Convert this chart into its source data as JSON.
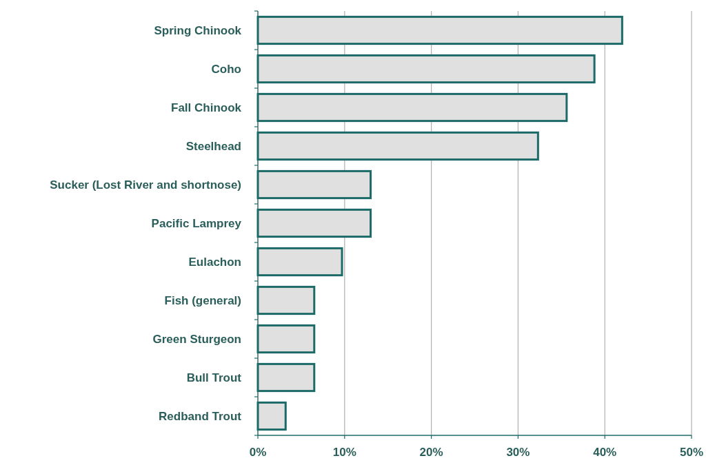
{
  "chart_data": {
    "type": "bar",
    "orientation": "horizontal",
    "categories": [
      "Spring Chinook",
      "Coho",
      "Fall Chinook",
      "Steelhead",
      "Sucker (Lost River and shortnose)",
      "Pacific Lamprey",
      "Eulachon",
      "Fish (general)",
      "Green Sturgeon",
      "Bull Trout",
      "Redband Trout"
    ],
    "values": [
      42.0,
      38.8,
      35.6,
      32.3,
      13.0,
      13.0,
      9.7,
      6.5,
      6.5,
      6.5,
      3.2
    ],
    "color": "#e0e0e0",
    "xlim": [
      0,
      50
    ],
    "xticks": [
      {
        "value": 0,
        "label": "0%"
      },
      {
        "value": 10,
        "label": "10%"
      },
      {
        "value": 20,
        "label": "20%"
      },
      {
        "value": 30,
        "label": "30%"
      },
      {
        "value": 40,
        "label": "40%"
      },
      {
        "value": 50,
        "label": "50%"
      }
    ],
    "grid": "x"
  }
}
